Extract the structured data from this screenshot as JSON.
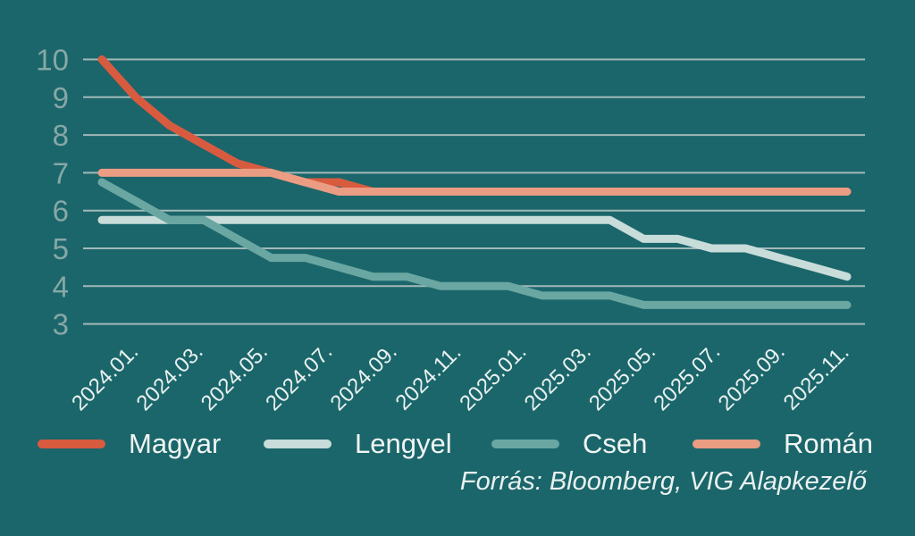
{
  "colors": {
    "background": "#1b666a",
    "gridline": "#a3b9ba",
    "y_tick_label": "#86a8a6",
    "x_tick_label": "#e9f1f0",
    "legend_text": "#f0f5f4",
    "source_text": "#e9f1f0"
  },
  "source_note": "Forrás: Bloomberg, VIG Alapkezelő",
  "chart_data": {
    "type": "line",
    "x": [
      "2024.01.",
      "2024.02.",
      "2024.03.",
      "2024.04.",
      "2024.05.",
      "2024.06.",
      "2024.07.",
      "2024.08.",
      "2024.09.",
      "2024.10.",
      "2024.11.",
      "2024.12.",
      "2025.01.",
      "2025.02.",
      "2025.03.",
      "2025.04.",
      "2025.05.",
      "2025.06.",
      "2025.07.",
      "2025.08.",
      "2025.09.",
      "2025.10.",
      "2025.11."
    ],
    "x_tick_labels": [
      "2024.01.",
      "2024.03.",
      "2024.05.",
      "2024.07.",
      "2024.09.",
      "2024.11.",
      "2025.01.",
      "2025.03.",
      "2025.05.",
      "2025.07.",
      "2025.09.",
      "2025.11."
    ],
    "yticks": [
      10,
      9,
      8,
      7,
      6,
      5,
      4,
      3
    ],
    "ylim": [
      3,
      10
    ],
    "grid": "horizontal-only",
    "legend_position": "bottom",
    "series": [
      {
        "name": "Magyar",
        "color": "#d85b40",
        "values": [
          10.0,
          9.0,
          8.25,
          7.75,
          7.25,
          7.0,
          6.75,
          6.75,
          6.5,
          6.5,
          6.5,
          6.5,
          6.5,
          6.5,
          6.5,
          6.5,
          6.5,
          6.5,
          6.5,
          6.5,
          6.5,
          6.5,
          6.5
        ]
      },
      {
        "name": "Lengyel",
        "color": "#c8dcda",
        "values": [
          5.75,
          5.75,
          5.75,
          5.75,
          5.75,
          5.75,
          5.75,
          5.75,
          5.75,
          5.75,
          5.75,
          5.75,
          5.75,
          5.75,
          5.75,
          5.75,
          5.25,
          5.25,
          5.0,
          5.0,
          4.75,
          4.5,
          4.25
        ]
      },
      {
        "name": "Cseh",
        "color": "#6aa7a3",
        "values": [
          6.75,
          6.25,
          5.75,
          5.75,
          5.25,
          4.75,
          4.75,
          4.5,
          4.25,
          4.25,
          4.0,
          4.0,
          4.0,
          3.75,
          3.75,
          3.75,
          3.5,
          3.5,
          3.5,
          3.5,
          3.5,
          3.5,
          3.5
        ]
      },
      {
        "name": "Román",
        "color": "#eb9d84",
        "values": [
          7.0,
          7.0,
          7.0,
          7.0,
          7.0,
          7.0,
          6.75,
          6.5,
          6.5,
          6.5,
          6.5,
          6.5,
          6.5,
          6.5,
          6.5,
          6.5,
          6.5,
          6.5,
          6.5,
          6.5,
          6.5,
          6.5,
          6.5
        ]
      }
    ]
  }
}
